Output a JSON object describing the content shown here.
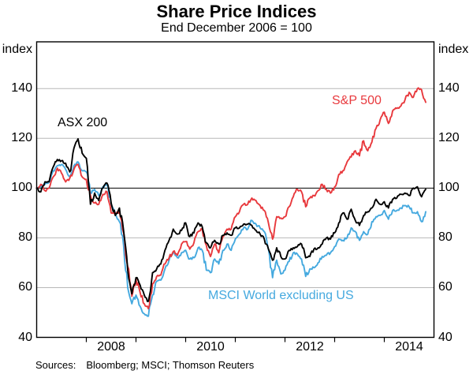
{
  "title": "Share Price Indices",
  "subtitle": "End December 2006 = 100",
  "footer": {
    "sources_label": "Sources:",
    "sources_text": "Bloomberg; MSCI; Thomson Reuters"
  },
  "axes": {
    "unit_label_left": "index",
    "unit_label_right": "index"
  },
  "chart_data": {
    "type": "line",
    "title": "Share Price Indices",
    "subtitle": "End December 2006 = 100",
    "x_start_year": 2007.0,
    "x_step_years": 0.0833333,
    "x_range": [
      2007,
      2015
    ],
    "x_tick_years": [
      2008,
      2009,
      2010,
      2011,
      2012,
      2013,
      2014
    ],
    "x_label_years": [
      2008,
      2010,
      2012,
      2014
    ],
    "y_range": [
      40,
      158.8
    ],
    "y_ticks": [
      140,
      120,
      100,
      80,
      60,
      40
    ],
    "y_gridlines_minor": [
      140,
      120,
      80,
      60
    ],
    "y_baseline": 100,
    "grid_color": "#b8b8b8",
    "baseline_color": "#000000",
    "frame_color": "#000000",
    "legend_position": "labels-on-chart",
    "series": [
      {
        "name": "msci-world-ex-us",
        "label": "MSCI World excluding US",
        "color": "#45a9df",
        "values": [
          100,
          100.5,
          101.5,
          102.5,
          107,
          109,
          109.5,
          107.5,
          104.5,
          109,
          110.5,
          107,
          106.5,
          98,
          99.5,
          97,
          100.5,
          101.5,
          93.5,
          90,
          86.5,
          77,
          60,
          53.5,
          57,
          52.5,
          49.5,
          48.5,
          57,
          62.5,
          63,
          67.5,
          71,
          74,
          72,
          74,
          75,
          71.5,
          72,
          76,
          75,
          67,
          66,
          71.5,
          69.5,
          75,
          77.5,
          75,
          79.5,
          81.5,
          84,
          83.5,
          87,
          85.5,
          84,
          82.5,
          75.5,
          64,
          71,
          65.5,
          67,
          70.5,
          74,
          73.5,
          71.5,
          64.5,
          67.5,
          68,
          70,
          72.5,
          73,
          74,
          76.5,
          79.5,
          79,
          80,
          84,
          82.5,
          79,
          82.5,
          81.5,
          86.5,
          88.5,
          89,
          91,
          87.5,
          91,
          91,
          92,
          93,
          92.5,
          90,
          90.5,
          86.5,
          90.5
        ]
      },
      {
        "name": "sp500",
        "label": "S&P 500",
        "color": "#e8393d",
        "values": [
          100,
          101.5,
          99,
          100,
          104.5,
          108,
          106,
          102.5,
          104,
          107.5,
          109.5,
          104.5,
          103.5,
          97,
          94,
          93.5,
          97.5,
          98.5,
          90,
          89.5,
          90.5,
          82,
          68.5,
          56.5,
          63.5,
          58,
          53.5,
          51.5,
          61.5,
          64.5,
          65,
          69.5,
          72,
          74.5,
          73,
          77.5,
          78.5,
          75.5,
          78,
          82.5,
          83.5,
          77,
          72.5,
          77.5,
          74,
          80.5,
          83.5,
          83.5,
          88.5,
          90.5,
          93.5,
          93.5,
          96,
          95,
          93,
          91,
          86,
          79.5,
          88.5,
          88,
          88.5,
          92.5,
          96.5,
          99.5,
          98.5,
          92.5,
          96,
          97,
          99,
          101.5,
          99.5,
          98,
          100.5,
          105.5,
          107,
          110.5,
          112.5,
          115,
          113,
          119,
          115,
          118.5,
          124,
          127.5,
          130.5,
          126,
          131,
          132,
          133,
          135.5,
          138.5,
          136.5,
          140,
          139.5,
          134.5
        ]
      },
      {
        "name": "asx200",
        "label": "ASX 200",
        "color": "#000000",
        "values": [
          100,
          98.5,
          102.5,
          102.5,
          108.5,
          111.5,
          111,
          110,
          106.5,
          116,
          119.8,
          114,
          112,
          93.5,
          98,
          95,
          100,
          102,
          94,
          89,
          92,
          83,
          67,
          57.5,
          64,
          61,
          57,
          54.5,
          66,
          67.5,
          69.5,
          75,
          79,
          83.5,
          81.5,
          83,
          86,
          80.5,
          82,
          86,
          84.5,
          78,
          76,
          79,
          77.5,
          81,
          82,
          81,
          84,
          84,
          85.5,
          85.5,
          85,
          83,
          81.5,
          79.5,
          75.5,
          71,
          76,
          72.5,
          71.5,
          75,
          76,
          76.5,
          77.5,
          72,
          72.5,
          75.5,
          76,
          77.5,
          80,
          79.5,
          82,
          86,
          90,
          87.5,
          91.5,
          87,
          85,
          89,
          90.5,
          92,
          95.5,
          93.5,
          94.5,
          92,
          95.5,
          96,
          97.5,
          98,
          97,
          100,
          100.5,
          96.5,
          99.5
        ]
      }
    ]
  }
}
